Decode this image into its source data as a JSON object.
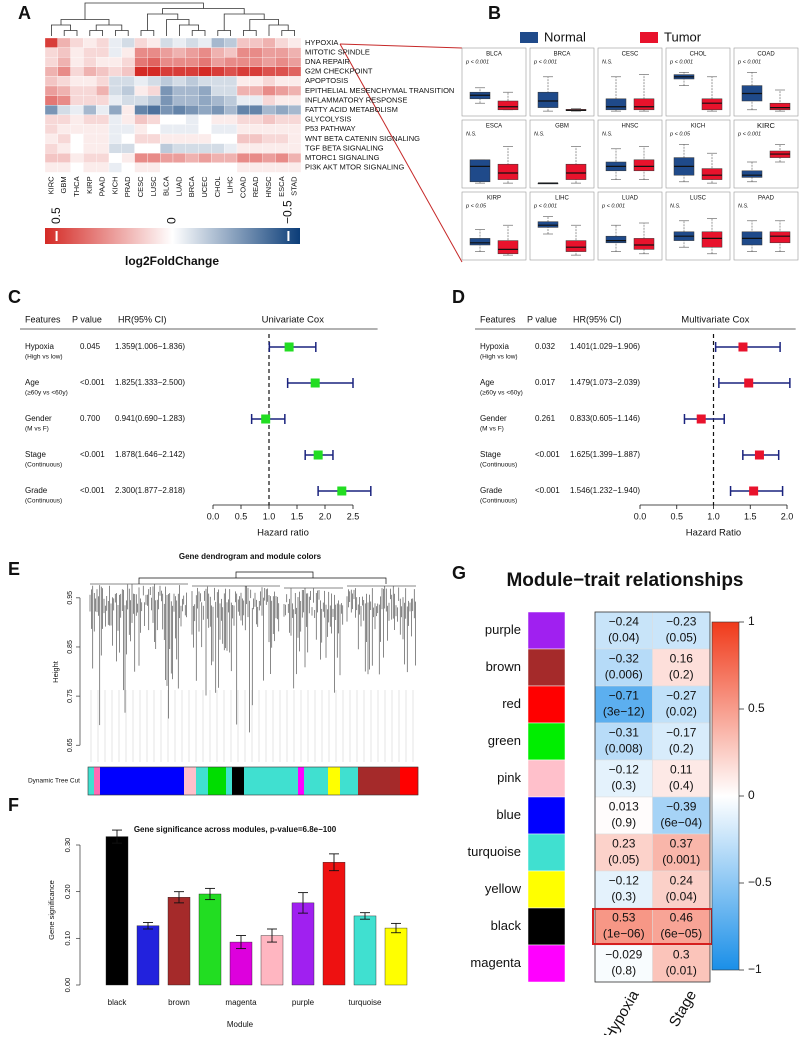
{
  "chart_data": [
    {
      "panel": "A",
      "type": "heatmap",
      "rows": [
        "HYPOXIA",
        "MITOTIC SPINDLE",
        "DNA REPAIR",
        "G2M CHECKPOINT",
        "APOPTOSIS",
        "EPITHELIAL MESENCHYMAL TRANSITION",
        "INFLAMMATORY RESPONSE",
        "FATTY ACID METABOLISM",
        "GLYCOLYSIS",
        "P53 PATHWAY",
        "WNT BETA CATENIN SIGNALING",
        "TGF BETA SIGNALING",
        "MTORC1 SIGNALING",
        "PI3K AKT MTOR SIGNALING"
      ],
      "columns": [
        "KIRC",
        "GBM",
        "THCA",
        "KIRP",
        "PAAD",
        "KICH",
        "PRAD",
        "CESC",
        "LUSC",
        "BLCA",
        "LUAD",
        "BRCA",
        "UCEC",
        "CHOL",
        "LIHC",
        "COAD",
        "READ",
        "HNSC",
        "ESCA",
        "STAD"
      ],
      "values": [
        [
          0.5,
          0.2,
          0.1,
          0.05,
          0.1,
          -0.05,
          -0.1,
          0.1,
          0.05,
          -0.1,
          -0.05,
          -0.1,
          -0.05,
          -0.2,
          -0.15,
          0.15,
          0.15,
          0.2,
          0.1,
          0.05
        ],
        [
          0.1,
          0.15,
          0.05,
          0.1,
          0.1,
          -0.05,
          0.05,
          0.3,
          0.3,
          0.25,
          0.2,
          0.25,
          0.3,
          0.2,
          0.15,
          0.3,
          0.3,
          0.25,
          0.25,
          0.2
        ],
        [
          0.1,
          0.2,
          0.05,
          0.1,
          0.05,
          0.05,
          0.1,
          0.35,
          0.4,
          0.3,
          0.3,
          0.3,
          0.35,
          0.25,
          0.3,
          0.3,
          0.3,
          0.25,
          0.3,
          0.25
        ],
        [
          0.2,
          0.3,
          0.1,
          0.2,
          0.15,
          0.1,
          0.15,
          0.55,
          0.55,
          0.5,
          0.5,
          0.5,
          0.55,
          0.5,
          0.45,
          0.5,
          0.5,
          0.45,
          0.45,
          0.4
        ],
        [
          0.15,
          0.1,
          0.05,
          0.05,
          0.1,
          -0.1,
          -0.1,
          -0.05,
          -0.1,
          -0.15,
          -0.1,
          -0.15,
          -0.1,
          -0.1,
          -0.1,
          0.05,
          0.05,
          0.1,
          0.05,
          0.05
        ],
        [
          0.25,
          0.2,
          0.1,
          0.1,
          0.2,
          -0.1,
          -0.15,
          0.05,
          0.1,
          -0.3,
          -0.2,
          -0.2,
          -0.25,
          -0.1,
          -0.1,
          0.2,
          0.2,
          0.3,
          0.25,
          0.2
        ],
        [
          0.35,
          0.3,
          0.1,
          0.1,
          0.1,
          -0.05,
          -0.1,
          -0.1,
          -0.15,
          -0.3,
          -0.2,
          -0.2,
          -0.25,
          -0.2,
          -0.15,
          -0.05,
          -0.05,
          0.1,
          0.05,
          0.05
        ],
        [
          -0.3,
          -0.1,
          -0.05,
          -0.2,
          -0.05,
          -0.25,
          0.05,
          -0.35,
          -0.4,
          -0.3,
          -0.35,
          -0.3,
          -0.25,
          -0.3,
          -0.2,
          -0.35,
          -0.35,
          -0.2,
          -0.25,
          -0.2
        ],
        [
          0.1,
          0.1,
          0.05,
          0.1,
          0.1,
          -0.05,
          0.05,
          0.15,
          0.1,
          0,
          0,
          -0.05,
          0,
          0.05,
          0.05,
          0.1,
          0.1,
          0.15,
          0.1,
          0.1
        ],
        [
          0.1,
          0.05,
          0.05,
          0.05,
          0.05,
          -0.05,
          -0.05,
          0.05,
          0,
          -0.05,
          -0.05,
          -0.05,
          0,
          -0.05,
          -0.05,
          0.05,
          0.05,
          0.05,
          0.05,
          0.05
        ],
        [
          0.05,
          0.1,
          0,
          0.05,
          0.05,
          -0.05,
          0,
          0.1,
          0.1,
          0.05,
          0.05,
          0.05,
          0.05,
          0,
          0,
          0.15,
          0.15,
          0.1,
          0.1,
          0.05
        ],
        [
          0.1,
          0.05,
          0,
          0.05,
          0.05,
          -0.1,
          -0.1,
          0,
          0,
          -0.15,
          -0.1,
          -0.1,
          -0.1,
          -0.1,
          -0.05,
          0.05,
          0.05,
          0.05,
          0.05,
          0.05
        ],
        [
          0.15,
          0.15,
          0.05,
          0.1,
          0.1,
          0,
          0.05,
          0.3,
          0.3,
          0.25,
          0.25,
          0.2,
          0.25,
          0.2,
          0.2,
          0.3,
          0.3,
          0.25,
          0.3,
          0.2
        ],
        [
          0.05,
          0.05,
          0,
          0.05,
          0.05,
          -0.05,
          0,
          0.05,
          0.05,
          0,
          0,
          0,
          0,
          0,
          0,
          0.05,
          0.05,
          0.05,
          0.05,
          0.05
        ]
      ],
      "colorscale": [
        "#0b3d78",
        "#ffffff",
        "#d42a25"
      ],
      "clim": [
        -0.55,
        0.55
      ],
      "colorbar_ticks": [
        0.5,
        0,
        {
          "value": -0.5,
          "label": "−0.5"
        }
      ],
      "colorbar_label": "log2FoldChange"
    },
    {
      "panel": "B",
      "type": "boxplot",
      "categories": [
        "BLCA",
        "BRCA",
        "CESC",
        "CHOL",
        "COAD",
        "ESCA",
        "GBM",
        "HNSC",
        "KICH",
        "KIRC",
        "KIRP",
        "LIHC",
        "LUAD",
        "LUSC",
        "PAAD"
      ],
      "annotations": [
        "p < 0.001",
        "p < 0.001",
        "N.S.",
        "p < 0.001",
        "p < 0.001",
        "N.S.",
        "N.S.",
        "N.S.",
        "p < 0.05",
        "p < 0.001",
        "p < 0.05",
        "p < 0.001",
        "p < 0.001",
        "N.S.",
        "N.S."
      ],
      "highlight": "KIRC",
      "highlight_color": "#cc1f1f",
      "ylim": [
        0,
        1
      ],
      "series": [
        {
          "name": "Normal",
          "color": "#1f4a8a",
          "values": [
            [
              0.2,
              0.3,
              0.38,
              0.45,
              0.55
            ],
            [
              0.02,
              0.1,
              0.25,
              0.45,
              0.8
            ],
            [
              0.02,
              0.05,
              0.12,
              0.3,
              0.8
            ],
            [
              0.6,
              0.75,
              0.8,
              0.85,
              0.9
            ],
            [
              0.05,
              0.25,
              0.42,
              0.6,
              0.9
            ],
            [
              0.02,
              0.05,
              0.4,
              0.55,
              0.55
            ],
            [
              0.01,
              0.01,
              0.02,
              0.02,
              0.02
            ],
            [
              0.1,
              0.3,
              0.4,
              0.5,
              0.8
            ],
            [
              0.05,
              0.2,
              0.4,
              0.6,
              0.9
            ],
            [
              0.05,
              0.15,
              0.2,
              0.3,
              0.5
            ],
            [
              0.1,
              0.25,
              0.3,
              0.4,
              0.6
            ],
            [
              0.5,
              0.65,
              0.7,
              0.78,
              0.9
            ],
            [
              0.1,
              0.3,
              0.35,
              0.45,
              0.7
            ],
            [
              0.2,
              0.35,
              0.45,
              0.55,
              0.8
            ],
            [
              0.1,
              0.25,
              0.4,
              0.55,
              0.8
            ]
          ]
        },
        {
          "name": "Tumor",
          "color": "#e8122c",
          "values": [
            [
              0.05,
              0.05,
              0.12,
              0.25,
              0.45
            ],
            [
              0.02,
              0.03,
              0.04,
              0.06,
              0.08
            ],
            [
              0.02,
              0.05,
              0.12,
              0.3,
              0.85
            ],
            [
              0.02,
              0.05,
              0.2,
              0.3,
              0.8
            ],
            [
              0.02,
              0.05,
              0.1,
              0.2,
              0.5
            ],
            [
              0.02,
              0.1,
              0.25,
              0.45,
              0.85
            ],
            [
              0.02,
              0.1,
              0.25,
              0.45,
              0.85
            ],
            [
              0.1,
              0.3,
              0.4,
              0.55,
              0.85
            ],
            [
              0.02,
              0.1,
              0.2,
              0.35,
              0.7
            ],
            [
              0.5,
              0.6,
              0.68,
              0.75,
              0.9
            ],
            [
              0.02,
              0.05,
              0.15,
              0.35,
              0.7
            ],
            [
              0.02,
              0.1,
              0.2,
              0.35,
              0.7
            ],
            [
              0.05,
              0.15,
              0.25,
              0.4,
              0.75
            ],
            [
              0.05,
              0.2,
              0.4,
              0.55,
              0.85
            ],
            [
              0.1,
              0.3,
              0.45,
              0.55,
              0.8
            ]
          ]
        }
      ]
    },
    {
      "panel": "C",
      "type": "forest",
      "title": "Univariate Cox",
      "headers": [
        "Features",
        "P value",
        "HR(95% CI)"
      ],
      "features": [
        "Hypoxia",
        "Age",
        "Gender",
        "Stage",
        "Grade"
      ],
      "feature_notes": [
        "(High vs low)",
        "(≥60y vs <60y)",
        "(M vs F)",
        "(Continuous)",
        "(Continuous)"
      ],
      "p_values": [
        "0.045",
        "<0.001",
        "0.700",
        "<0.001",
        "<0.001"
      ],
      "values": [
        1.359,
        1.825,
        0.941,
        1.878,
        2.3
      ],
      "ci_low": [
        1.006,
        1.333,
        0.69,
        1.646,
        1.877
      ],
      "ci_high": [
        1.836,
        2.5,
        1.283,
        2.142,
        2.818
      ],
      "value_labels": [
        "1.359(1.006−1.836)",
        "1.825(1.333−2.500)",
        "0.941(0.690−1.283)",
        "1.878(1.646−2.142)",
        "2.300(1.877−2.818)"
      ],
      "color": "#22dd22",
      "ci_color": "#1a237e",
      "refline": 1,
      "xlim": [
        0,
        2.85
      ],
      "xticks": [
        {
          "value": 0,
          "label": "0.0"
        },
        0.5,
        {
          "value": 1,
          "label": "1.0"
        },
        1.5,
        {
          "value": 2,
          "label": "2.0"
        },
        2.5
      ],
      "xlabel": "Hazard ratio"
    },
    {
      "panel": "D",
      "type": "forest",
      "title": "Multivariate Cox",
      "headers": [
        "Features",
        "P value",
        "HR(95% CI)"
      ],
      "features": [
        "Hypoxia",
        "Age",
        "Gender",
        "Stage",
        "Grade"
      ],
      "feature_notes": [
        "(High vs low)",
        "(≥60y vs <60y)",
        "(M vs F)",
        "(Continuous)",
        "(Continuous)"
      ],
      "p_values": [
        "0.032",
        "0.017",
        "0.261",
        "<0.001",
        "<0.001"
      ],
      "values": [
        1.401,
        1.479,
        0.833,
        1.625,
        1.546
      ],
      "ci_low": [
        1.029,
        1.073,
        0.605,
        1.399,
        1.232
      ],
      "ci_high": [
        1.906,
        2.039,
        1.146,
        1.887,
        1.94
      ],
      "value_labels": [
        "1.401(1.029−1.906)",
        "1.479(1.073−2.039)",
        "0.833(0.605−1.146)",
        "1.625(1.399−1.887)",
        "1.546(1.232−1.940)"
      ],
      "color": "#e8122c",
      "ci_color": "#1a237e",
      "refline": 1,
      "xlim": [
        0,
        2.05
      ],
      "xticks": [
        {
          "value": 0,
          "label": "0.0"
        },
        0.5,
        {
          "value": 1,
          "label": "1.0"
        },
        1.5,
        {
          "value": 2,
          "label": "2.0"
        }
      ],
      "xlabel": "Hazard Ratio"
    },
    {
      "panel": "E",
      "type": "dendrogram",
      "title": "Gene dendrogram and module colors",
      "ylabel": "Height",
      "ylim": [
        0.62,
        0.97
      ],
      "yticks": [
        0.65,
        0.75,
        0.85,
        0.95
      ],
      "color_bar_label": "Dynamic Tree Cut",
      "color_bar": [
        "#40e0d0",
        "#ff69b4",
        "#0000ff",
        "#0000ff",
        "#0000ff",
        "#0000ff",
        "#0000ff",
        "#0000ff",
        "#0000ff",
        "#0000ff",
        "#0000ff",
        "#0000ff",
        "#0000ff",
        "#0000ff",
        "#0000ff",
        "#0000ff",
        "#ffc0cb",
        "#ffc0cb",
        "#40e0d0",
        "#40e0d0",
        "#00dd00",
        "#00dd00",
        "#00dd00",
        "#40e0d0",
        "#000000",
        "#000000",
        "#40e0d0",
        "#40e0d0",
        "#40e0d0",
        "#40e0d0",
        "#40e0d0",
        "#40e0d0",
        "#40e0d0",
        "#40e0d0",
        "#40e0d0",
        "#ff00ff",
        "#40e0d0",
        "#40e0d0",
        "#40e0d0",
        "#40e0d0",
        "#ffff00",
        "#ffff00",
        "#40e0d0",
        "#40e0d0",
        "#40e0d0",
        "#a52a2a",
        "#a52a2a",
        "#a52a2a",
        "#a52a2a",
        "#a52a2a",
        "#a52a2a",
        "#a52a2a",
        "#ff0000",
        "#ff0000",
        "#ff0000"
      ]
    },
    {
      "panel": "F",
      "type": "bar",
      "title": "Gene significance across modules, p-value=6.8e−100",
      "xlabel": "Module",
      "ylabel": "Gene significance",
      "categories": [
        "black",
        null,
        "brown",
        null,
        "magenta",
        null,
        "purple",
        null,
        "turquoise",
        null
      ],
      "colors": [
        "#000000",
        "#2222dd",
        "#a52a2a",
        "#22dd22",
        "#dd00dd",
        "#ffb6c1",
        "#a020f0",
        "#ee1111",
        "#40e0d0",
        "#ffff00"
      ],
      "values": [
        0.318,
        0.127,
        0.188,
        0.195,
        0.092,
        0.106,
        0.176,
        0.263,
        0.148,
        0.122
      ],
      "errors": [
        0.014,
        0.007,
        0.012,
        0.012,
        0.014,
        0.014,
        0.022,
        0.018,
        0.007,
        0.01
      ],
      "ylim": [
        0,
        0.33
      ],
      "yticks": [
        {
          "value": 0,
          "label": "0.00"
        },
        {
          "value": 0.1,
          "label": "0.10"
        },
        {
          "value": 0.2,
          "label": "0.20"
        },
        {
          "value": 0.3,
          "label": "0.30"
        }
      ]
    },
    {
      "panel": "G",
      "type": "corrplot",
      "title": "Module−trait relationships",
      "rows": [
        "purple",
        "brown",
        "red",
        "green",
        "pink",
        "blue",
        "turquoise",
        "yellow",
        "black",
        "magenta"
      ],
      "row_colors": [
        "#a020f0",
        "#a52a2a",
        "#ff0000",
        "#00ee00",
        "#ffc0cb",
        "#0000ff",
        "#40e0d0",
        "#ffff00",
        "#000000",
        "#ff00ff"
      ],
      "series": [
        {
          "name": "Hypoxia",
          "values": [
            -0.24,
            -0.32,
            -0.71,
            -0.31,
            -0.12,
            0.013,
            0.23,
            -0.12,
            0.53,
            -0.029
          ],
          "value_labels": [
            "−0.24",
            "−0.32",
            "−0.71",
            "−0.31",
            "−0.12",
            "0.013",
            "0.23",
            "−0.12",
            "0.53",
            "−0.029"
          ],
          "p_labels": [
            "(0.04)",
            "(0.006)",
            "(3e−12)",
            "(0.008)",
            "(0.3)",
            "(0.9)",
            "(0.05)",
            "(0.3)",
            "(1e−06)",
            "(0.8)"
          ]
        },
        {
          "name": "Stage",
          "values": [
            -0.23,
            0.16,
            -0.27,
            -0.17,
            0.11,
            -0.39,
            0.37,
            0.24,
            0.46,
            0.3
          ],
          "value_labels": [
            "−0.23",
            "0.16",
            "−0.27",
            "−0.17",
            "0.11",
            "−0.39",
            "0.37",
            "0.24",
            "0.46",
            "0.3"
          ],
          "p_labels": [
            "(0.05)",
            "(0.2)",
            "(0.02)",
            "(0.2)",
            "(0.4)",
            "(6e−04)",
            "(0.001)",
            "(0.04)",
            "(6e−05)",
            "(0.01)"
          ]
        }
      ],
      "colorscale": [
        "#1a8fe8",
        "#ffffff",
        "#f03a1a"
      ],
      "clim": [
        -1,
        1
      ],
      "colorbar_ticks": [
        1,
        0.5,
        0,
        {
          "value": -0.5,
          "label": "−0.5"
        },
        {
          "value": -1,
          "label": "−1"
        }
      ]
    }
  ]
}
